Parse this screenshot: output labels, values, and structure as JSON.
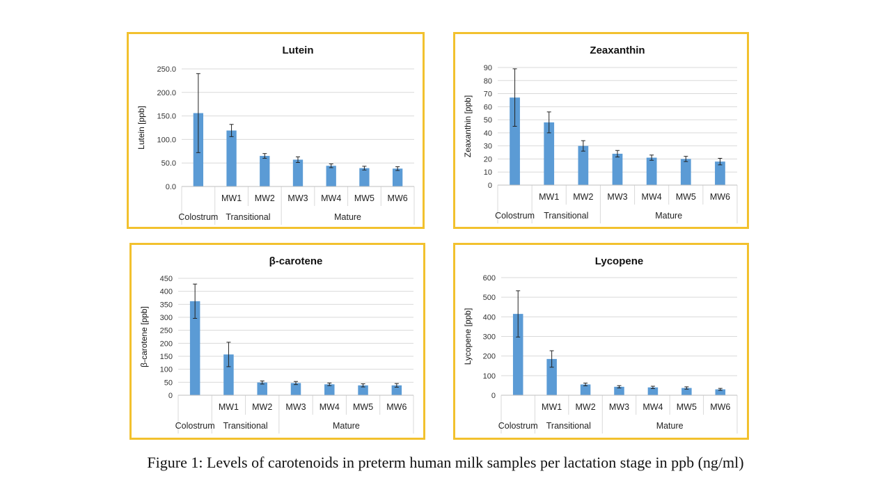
{
  "caption": "Figure 1: Levels of carotenoids in preterm human milk samples per lactation stage in ppb (ng/ml)",
  "colors": {
    "bar": "#5b9bd5",
    "frame": "#f2c12e",
    "grid": "#d9d9d9"
  },
  "chart_data": [
    {
      "type": "bar",
      "title": "Lutein",
      "ylabel": "Lutein [ppb]",
      "ylim": [
        0,
        250
      ],
      "yticks": [
        "0.0",
        "50.0",
        "100.0",
        "150.0",
        "200.0",
        "250.0"
      ],
      "categories": [
        "",
        "MW1",
        "MW2",
        "MW3",
        "MW4",
        "MW5",
        "MW6"
      ],
      "groups": [
        {
          "label": "Colostrum",
          "span": [
            0,
            1
          ]
        },
        {
          "label": "Transitional",
          "span": [
            1,
            3
          ]
        },
        {
          "label": "Mature",
          "span": [
            3,
            7
          ]
        }
      ],
      "values": [
        156,
        119,
        65,
        57,
        44,
        39,
        38
      ],
      "errors": [
        84,
        13,
        5,
        6,
        4,
        4,
        4
      ],
      "grid": true
    },
    {
      "type": "bar",
      "title": "Zeaxanthin",
      "ylabel": "Zeaxanthin [ppb]",
      "ylim": [
        0,
        90
      ],
      "yticks": [
        "0",
        "10",
        "20",
        "30",
        "40",
        "50",
        "60",
        "70",
        "80",
        "90"
      ],
      "categories": [
        "",
        "MW1",
        "MW2",
        "MW3",
        "MW4",
        "MW5",
        "MW6"
      ],
      "groups": [
        {
          "label": "Colostrum",
          "span": [
            0,
            1
          ]
        },
        {
          "label": "Transitional",
          "span": [
            1,
            3
          ]
        },
        {
          "label": "Mature",
          "span": [
            3,
            7
          ]
        }
      ],
      "values": [
        67,
        48,
        30,
        24,
        21,
        20,
        18
      ],
      "errors": [
        22,
        8,
        4,
        2.5,
        2,
        2,
        2.5
      ],
      "grid": true
    },
    {
      "type": "bar",
      "title": "β-carotene",
      "ylabel": "β-carotene [ppb]",
      "ylim": [
        0,
        450
      ],
      "yticks": [
        "0",
        "50",
        "100",
        "150",
        "200",
        "250",
        "300",
        "350",
        "400",
        "450"
      ],
      "categories": [
        "",
        "MW1",
        "MW2",
        "MW3",
        "MW4",
        "MW5",
        "MW6"
      ],
      "groups": [
        {
          "label": "Colostrum",
          "span": [
            0,
            1
          ]
        },
        {
          "label": "Transitional",
          "span": [
            1,
            3
          ]
        },
        {
          "label": "Mature",
          "span": [
            3,
            7
          ]
        }
      ],
      "values": [
        362,
        157,
        49,
        47,
        42,
        38,
        38
      ],
      "errors": [
        66,
        47,
        6,
        6,
        5,
        6,
        7
      ],
      "grid": true
    },
    {
      "type": "bar",
      "title": "Lycopene",
      "ylabel": "Lycopene [ppb]",
      "ylim": [
        0,
        600
      ],
      "yticks": [
        "0",
        "100",
        "200",
        "300",
        "400",
        "500",
        "600"
      ],
      "categories": [
        "",
        "MW1",
        "MW2",
        "MW3",
        "MW4",
        "MW5",
        "MW6"
      ],
      "groups": [
        {
          "label": "Colostrum",
          "span": [
            0,
            1
          ]
        },
        {
          "label": "Transitional",
          "span": [
            1,
            3
          ]
        },
        {
          "label": "Mature",
          "span": [
            3,
            7
          ]
        }
      ],
      "values": [
        415,
        185,
        55,
        43,
        40,
        37,
        30
      ],
      "errors": [
        118,
        42,
        7,
        6,
        6,
        6,
        5
      ],
      "grid": true
    }
  ]
}
